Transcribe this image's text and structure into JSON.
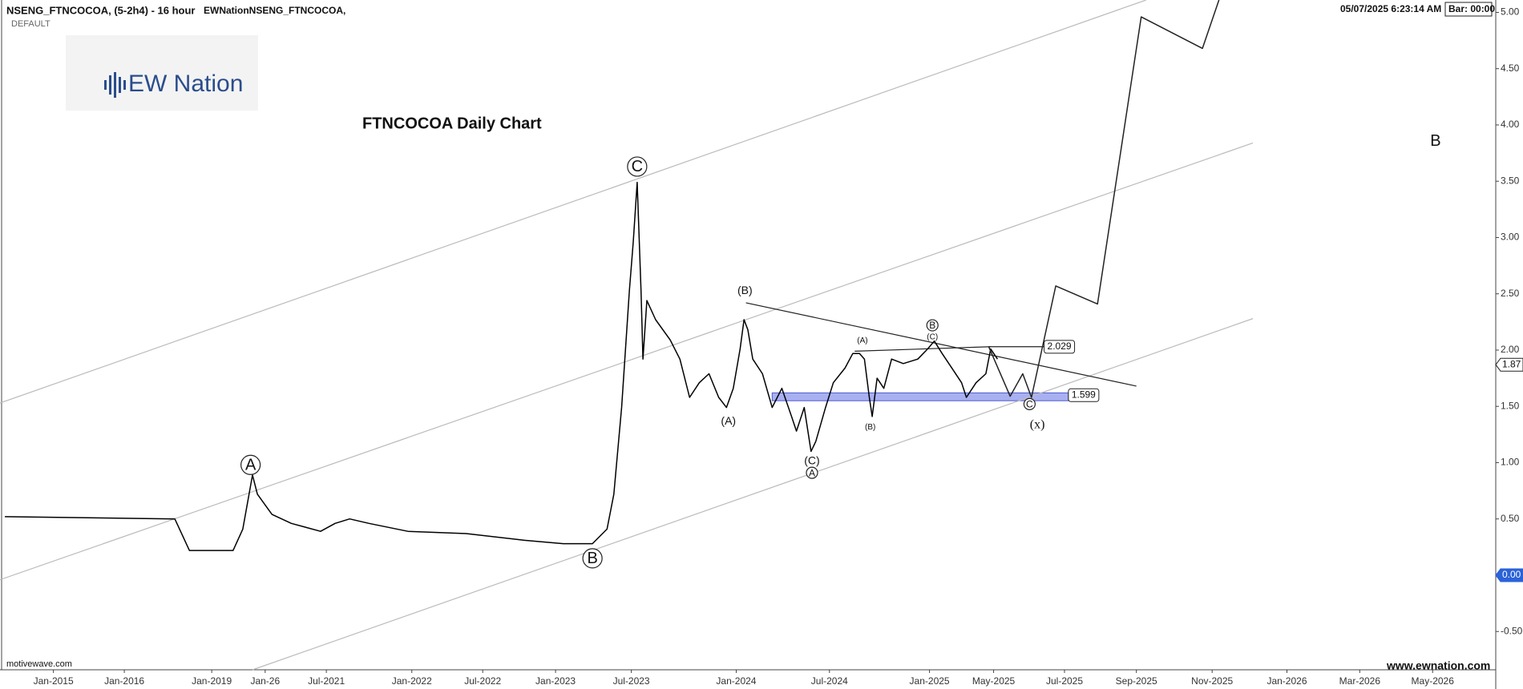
{
  "header": {
    "symbol": "NSENG_FTNCOCOA, (5-2h4) - 16 hour",
    "study": "EWNationNSENG_FTNCOCOA,",
    "layout": "DEFAULT",
    "timestamp": "05/07/2025 6:23:14 AM",
    "bar_timer": "Bar: 00:00",
    "logo": "EW Nation"
  },
  "footer": {
    "left": "motivewave.com",
    "right": "www.ewnation.com"
  },
  "chart_data": {
    "type": "line",
    "title": "FTNCOCOA Daily Chart",
    "xlim": [
      0,
      1540
    ],
    "ylim": [
      -0.84,
      5.11
    ],
    "xticks": [
      {
        "value": 55,
        "label": "Jan-2015"
      },
      {
        "value": 128,
        "label": "Jan-2016"
      },
      {
        "value": 218,
        "label": "Jan-2019"
      },
      {
        "value": 273,
        "label": "Jan-26"
      },
      {
        "value": 336,
        "label": "Jul-2021"
      },
      {
        "value": 424,
        "label": "Jan-2022"
      },
      {
        "value": 497,
        "label": "Jul-2022"
      },
      {
        "value": 572,
        "label": "Jan-2023"
      },
      {
        "value": 650,
        "label": "Jul-2023"
      },
      {
        "value": 758,
        "label": "Jan-2024"
      },
      {
        "value": 854,
        "label": "Jul-2024"
      },
      {
        "value": 957,
        "label": "Jan-2025"
      },
      {
        "value": 1023,
        "label": "May-2025"
      },
      {
        "value": 1096,
        "label": "Jul-2025"
      },
      {
        "value": 1170,
        "label": "Sep-2025"
      },
      {
        "value": 1248,
        "label": "Nov-2025"
      },
      {
        "value": 1325,
        "label": "Jan-2026"
      },
      {
        "value": 1400,
        "label": "Mar-2026"
      },
      {
        "value": 1475,
        "label": "May-2026"
      }
    ],
    "yticks": [
      {
        "value": -0.5,
        "label": "-0.50"
      },
      {
        "value": 0,
        "label": "0.00"
      },
      {
        "value": 0.5,
        "label": "0.50"
      },
      {
        "value": 1,
        "label": "1.00"
      },
      {
        "value": 1.5,
        "label": "1.50"
      },
      {
        "value": 2,
        "label": "2.00"
      },
      {
        "value": 2.5,
        "label": "2.50"
      },
      {
        "value": 3,
        "label": "3.00"
      },
      {
        "value": 3.5,
        "label": "3.50"
      },
      {
        "value": 4,
        "label": "4.00"
      },
      {
        "value": 4.5,
        "label": "4.50"
      },
      {
        "value": 5,
        "label": "5.00"
      }
    ],
    "series": [
      {
        "color": "#000000",
        "x": [
          5,
          180,
          195,
          240,
          250,
          260,
          265,
          280,
          300,
          330,
          345,
          360,
          380,
          420,
          480,
          540,
          580,
          610,
          625,
          632,
          640,
          648,
          652,
          656,
          660,
          662,
          666,
          675,
          690,
          700,
          710,
          720,
          730,
          740,
          748,
          755,
          762,
          766,
          770,
          775,
          785,
          795,
          805,
          815,
          820,
          828,
          835,
          840,
          850,
          858,
          870,
          878,
          885,
          890,
          895,
          898,
          903,
          910,
          918,
          930,
          945,
          955,
          962,
          970,
          980,
          990,
          995,
          1005,
          1015,
          1020,
          1027
        ],
        "values": [
          0.52,
          0.5,
          0.22,
          0.22,
          0.41,
          0.89,
          0.72,
          0.54,
          0.46,
          0.39,
          0.46,
          0.5,
          0.46,
          0.39,
          0.37,
          0.31,
          0.28,
          0.28,
          0.41,
          0.72,
          1.49,
          2.53,
          2.96,
          3.49,
          2.53,
          1.92,
          2.44,
          2.27,
          2.09,
          1.92,
          1.58,
          1.71,
          1.79,
          1.58,
          1.49,
          1.66,
          2.01,
          2.27,
          2.18,
          1.92,
          1.79,
          1.49,
          1.66,
          1.41,
          1.28,
          1.49,
          1.1,
          1.19,
          1.49,
          1.71,
          1.84,
          1.97,
          1.97,
          1.92,
          1.58,
          1.41,
          1.75,
          1.66,
          1.92,
          1.88,
          1.92,
          2.01,
          2.08,
          1.97,
          1.84,
          1.71,
          1.58,
          1.71,
          1.79,
          2.01,
          1.92
        ]
      },
      {
        "color": "#222222",
        "x": [
          1018,
          1040,
          1053,
          1062,
          1087,
          1130,
          1175,
          1238,
          1255
        ],
        "values": [
          2.03,
          1.59,
          1.79,
          1.58,
          2.57,
          2.41,
          4.96,
          4.68,
          5.11
        ]
      }
    ],
    "trendlines": [
      {
        "x": [
          0,
          1180
        ],
        "values": [
          1.53,
          5.11
        ],
        "color": "#bbbbbb"
      },
      {
        "x": [
          0,
          1290
        ],
        "values": [
          -0.04,
          3.84
        ],
        "color": "#bbbbbb"
      },
      {
        "x": [
          260,
          1290
        ],
        "values": [
          -0.84,
          2.28
        ],
        "color": "#bbbbbb"
      },
      {
        "x": [
          768,
          1170
        ],
        "values": [
          2.42,
          1.68
        ],
        "color": "#222222"
      },
      {
        "x": [
          880,
          1020
        ],
        "values": [
          1.99,
          2.03
        ],
        "color": "#222222"
      },
      {
        "x": [
          1018,
          1075
        ],
        "values": [
          2.03,
          2.03
        ],
        "color": "#222222"
      }
    ],
    "zone": {
      "x": [
        795,
        1100
      ],
      "values": [
        1.55,
        1.62
      ],
      "color": "#a9b0f2"
    },
    "levels": [
      {
        "value": 2.029,
        "x": 1075
      },
      {
        "value": 1.599,
        "x": 1100
      }
    ],
    "annotations": [
      {
        "text": "A",
        "x": 258,
        "y": 0.98,
        "style": "circle"
      },
      {
        "text": "B",
        "x": 610,
        "y": 0.15,
        "style": "circle"
      },
      {
        "text": "C",
        "x": 656,
        "y": 3.63,
        "style": "circle"
      },
      {
        "text": "(B)",
        "x": 767,
        "y": 2.53,
        "style": "plain"
      },
      {
        "text": "(A)",
        "x": 750,
        "y": 1.37,
        "style": "plain"
      },
      {
        "text": "(C)",
        "x": 836,
        "y": 1.02,
        "style": "plain"
      },
      {
        "text": "A",
        "x": 836,
        "y": 0.91,
        "style": "small-circle"
      },
      {
        "text": "(A)",
        "x": 888,
        "y": 2.09,
        "style": "small"
      },
      {
        "text": "(B)",
        "x": 896,
        "y": 1.32,
        "style": "small"
      },
      {
        "text": "B",
        "x": 960,
        "y": 2.22,
        "style": "small-circle"
      },
      {
        "text": "(C)",
        "x": 960,
        "y": 2.12,
        "style": "small"
      },
      {
        "text": "C",
        "x": 1060,
        "y": 1.52,
        "style": "small-circle"
      },
      {
        "text": "(x)",
        "x": 1068,
        "y": 1.34,
        "style": "serif"
      },
      {
        "text": "B",
        "x": 1478,
        "y": 3.86,
        "style": "big"
      }
    ],
    "price_tags": [
      {
        "value": 1.87,
        "color": "#ffffff"
      },
      {
        "value": 0,
        "label": "0.00",
        "color": "#2a62d8"
      }
    ]
  }
}
